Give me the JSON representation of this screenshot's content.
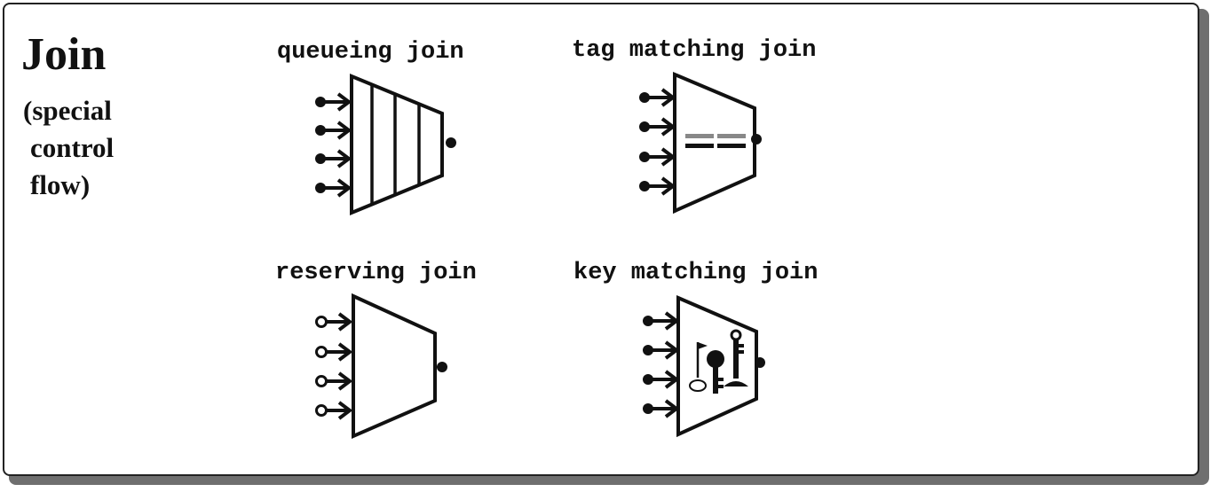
{
  "title": "Join",
  "subtitle_lines": [
    "(special",
    "control",
    "flow)"
  ],
  "nodes": [
    {
      "id": "queueing",
      "label": "queueing join",
      "input_port": "filled"
    },
    {
      "id": "tag_matching",
      "label": "tag matching join",
      "input_port": "filled"
    },
    {
      "id": "reserving",
      "label": "reserving join",
      "input_port": "hollow"
    },
    {
      "id": "key_matching",
      "label": "key matching join",
      "input_port": "filled"
    }
  ]
}
